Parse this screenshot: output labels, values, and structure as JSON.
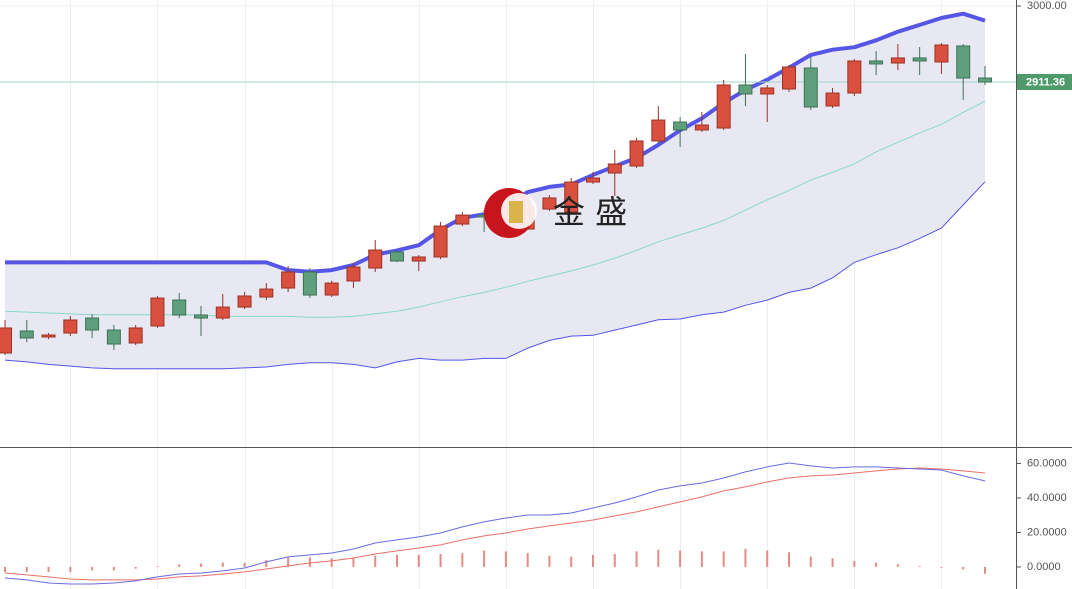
{
  "chart_data": {
    "type": "candlestick",
    "ylim": [
      2485.7,
      3007
    ],
    "yticks": [
      {
        "value": 3000,
        "label": "3000.00"
      }
    ],
    "last_price": 2911.36,
    "watermark": "金 盛",
    "up_color": "#d9503f",
    "down_color": "#5f9f7c",
    "candles": {
      "open": [
        2595.3,
        2621.0,
        2614.0,
        2618.6,
        2636.1,
        2622.1,
        2607.0,
        2626.8,
        2657.1,
        2639.6,
        2636.1,
        2648.9,
        2660.6,
        2671.1,
        2689.8,
        2662.9,
        2679.3,
        2694.4,
        2713.1,
        2702.6,
        2707.3,
        2745.7,
        2756.2,
        2756.2,
        2739.9,
        2763.2,
        2759.7,
        2794.7,
        2805.2,
        2813.4,
        2842.6,
        2864.7,
        2855.4,
        2857.7,
        2907.9,
        2897.4,
        2903.2,
        2927.7,
        2883.4,
        2898.5,
        2935.9,
        2933.5,
        2939.4,
        2934.7,
        2953.4,
        2916.0
      ],
      "high": [
        2633.8,
        2633.8,
        2618.6,
        2638.5,
        2640.8,
        2628.0,
        2628.0,
        2661.8,
        2665.3,
        2650.1,
        2664.1,
        2666.4,
        2676.9,
        2696.8,
        2694.4,
        2679.3,
        2700.3,
        2727.1,
        2715.4,
        2709.6,
        2748.1,
        2759.7,
        2762.1,
        2779.6,
        2773.7,
        2779.6,
        2799.4,
        2806.4,
        2832.1,
        2846.1,
        2883.4,
        2870.5,
        2876.4,
        2913.7,
        2944.0,
        2907.9,
        2931.2,
        2940.5,
        2904.4,
        2938.2,
        2947.5,
        2955.7,
        2952.2,
        2956.8,
        2955.7,
        2930.0
      ],
      "low": [
        2593.0,
        2608.1,
        2611.6,
        2615.1,
        2612.8,
        2598.8,
        2604.6,
        2624.5,
        2636.1,
        2615.1,
        2633.8,
        2646.6,
        2657.1,
        2666.4,
        2659.4,
        2660.6,
        2671.1,
        2689.8,
        2701.4,
        2690.9,
        2704.9,
        2743.4,
        2736.4,
        2750.4,
        2739.9,
        2760.9,
        2757.4,
        2792.4,
        2778.4,
        2811.1,
        2840.2,
        2835.6,
        2853.1,
        2855.4,
        2883.4,
        2864.7,
        2899.7,
        2878.7,
        2881.0,
        2895.0,
        2919.5,
        2925.4,
        2919.5,
        2920.7,
        2890.4,
        2907.9
      ],
      "close": [
        2624.5,
        2612.8,
        2616.3,
        2633.8,
        2622.1,
        2605.8,
        2624.5,
        2659.4,
        2639.6,
        2636.1,
        2648.9,
        2661.8,
        2669.9,
        2689.8,
        2662.9,
        2676.9,
        2695.6,
        2715.4,
        2702.6,
        2707.3,
        2743.4,
        2756.2,
        2753.9,
        2773.7,
        2765.6,
        2776.1,
        2794.7,
        2799.4,
        2815.7,
        2842.6,
        2867.0,
        2855.4,
        2861.2,
        2907.9,
        2897.4,
        2904.4,
        2928.9,
        2882.2,
        2898.5,
        2935.9,
        2932.4,
        2939.4,
        2935.9,
        2954.5,
        2916.0,
        2911.36
      ]
    },
    "bands": {
      "color": "#5555e6",
      "mid_color": "#86d9c9",
      "upper": [
        2701,
        2701,
        2701,
        2701,
        2701,
        2701,
        2701,
        2701,
        2701,
        2701,
        2701,
        2701,
        2701,
        2692,
        2690,
        2692,
        2698,
        2710,
        2715,
        2721,
        2739,
        2753,
        2757,
        2768,
        2783,
        2789,
        2792,
        2803,
        2813,
        2823,
        2838,
        2855,
        2869,
        2887,
        2902,
        2914,
        2928,
        2943,
        2949,
        2952,
        2960,
        2970,
        2978,
        2986,
        2991,
        2983
      ],
      "middle": [
        2644,
        2643,
        2642,
        2641,
        2640,
        2640,
        2640,
        2640,
        2640,
        2640,
        2638,
        2638,
        2638,
        2638,
        2637,
        2637,
        2638,
        2641,
        2644,
        2649,
        2655,
        2661,
        2666,
        2672,
        2679,
        2685,
        2691,
        2698,
        2706,
        2715,
        2725,
        2733,
        2741,
        2750,
        2762,
        2774,
        2785,
        2797,
        2806,
        2816,
        2830,
        2841,
        2852,
        2862,
        2876,
        2889
      ],
      "lower": [
        2587,
        2585,
        2582,
        2580,
        2578,
        2577,
        2577,
        2577,
        2577,
        2577,
        2577,
        2578,
        2579,
        2582,
        2584,
        2584,
        2582,
        2578,
        2585,
        2589,
        2587,
        2587,
        2589,
        2589,
        2601,
        2610,
        2615,
        2616,
        2622,
        2628,
        2634,
        2635,
        2640,
        2643,
        2651,
        2657,
        2666,
        2671,
        2683,
        2701,
        2710,
        2718,
        2729,
        2741,
        2768,
        2795
      ]
    },
    "macd": {
      "ylim": [
        -12.8,
        68.4
      ],
      "yticks": [
        {
          "value": 60,
          "label": "60.0000"
        },
        {
          "value": 40,
          "label": "40.0000"
        },
        {
          "value": 20,
          "label": "20.0000"
        },
        {
          "value": 0,
          "label": "0.0000"
        }
      ],
      "dif_color": "#6b6be0",
      "dea_color": "#e8706a",
      "dif": [
        -6.4,
        -7.5,
        -9.3,
        -9.9,
        -9.9,
        -9.3,
        -8.1,
        -5.8,
        -4.1,
        -3.5,
        -2.3,
        -0.6,
        2.9,
        5.8,
        7.0,
        8.1,
        10.4,
        13.9,
        15.7,
        17.4,
        19.7,
        23.2,
        26.1,
        28.4,
        30.1,
        30.1,
        31.3,
        34.2,
        37.1,
        40.6,
        44.6,
        47.0,
        48.7,
        51.6,
        55.1,
        58.0,
        60.3,
        58.6,
        57.4,
        58.0,
        58.0,
        57.4,
        56.8,
        56.2,
        52.8,
        49.9
      ],
      "dea": [
        -3.5,
        -4.6,
        -5.8,
        -7.0,
        -7.5,
        -7.5,
        -7.5,
        -7.0,
        -5.8,
        -5.2,
        -4.1,
        -2.9,
        -1.2,
        0.6,
        2.3,
        3.5,
        5.2,
        7.5,
        9.3,
        11.0,
        12.8,
        15.7,
        18.0,
        19.7,
        22.0,
        23.8,
        25.5,
        27.2,
        29.6,
        31.9,
        34.8,
        37.7,
        40.6,
        44.1,
        46.4,
        49.3,
        51.6,
        52.8,
        53.3,
        54.5,
        55.7,
        56.8,
        57.4,
        56.8,
        55.7,
        54.5
      ],
      "hist": [
        -3,
        -3,
        -3,
        -3,
        -2,
        -2,
        -1,
        0.5,
        1.5,
        2,
        2.5,
        2.5,
        4,
        5.5,
        5.5,
        5,
        5.5,
        6.5,
        7,
        7,
        7.5,
        8,
        9.5,
        9,
        8,
        6.5,
        6,
        7,
        7.5,
        9,
        10,
        9.5,
        9,
        9,
        10.5,
        9.5,
        8.5,
        6,
        5,
        3.5,
        2.5,
        1.5,
        0.5,
        -0.5,
        -1.5,
        -4
      ]
    }
  }
}
